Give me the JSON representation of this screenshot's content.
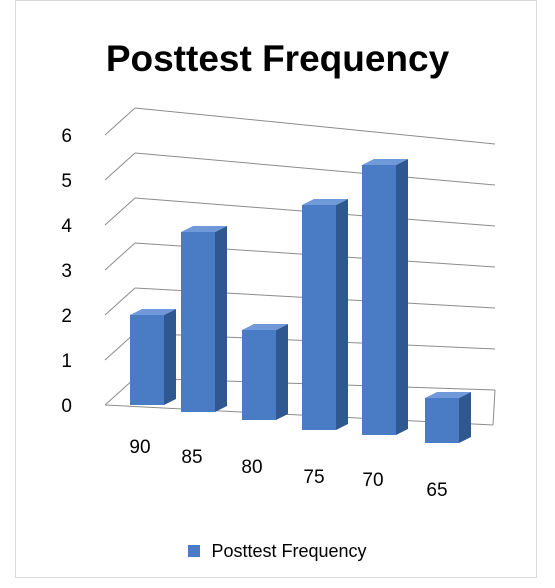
{
  "chart_data": {
    "type": "bar",
    "title": "Posttest Frequency",
    "categories": [
      "90",
      "85",
      "80",
      "75",
      "70",
      "65"
    ],
    "series": [
      {
        "name": "Posttest Frequency",
        "values": [
          2,
          4,
          2,
          5,
          6,
          1
        ]
      }
    ],
    "ylim": [
      0,
      6
    ],
    "yticks": [
      0,
      1,
      2,
      3,
      4,
      5,
      6
    ],
    "grid": true,
    "legend": "bottom",
    "colors": {
      "bar_front": "#4a7cc5",
      "bar_side": "#2f5790",
      "bar_top": "#6f99d9",
      "grid": "#8c8c8c"
    }
  }
}
